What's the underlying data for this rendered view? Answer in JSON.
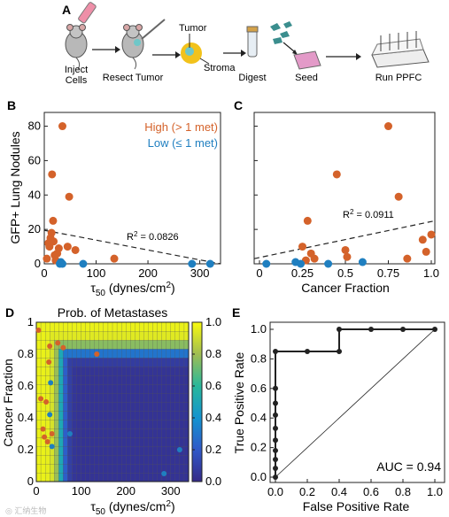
{
  "panel_a": {
    "label": "A",
    "steps": [
      "Inject\nCells",
      "Resect Tumor",
      "Digest",
      "Seed",
      "Run PPFC"
    ],
    "tumor_label": "Tumor",
    "stroma_label": "Stroma"
  },
  "chart_data": [
    {
      "panel": "B",
      "type": "scatter",
      "xlabel": "τ50 (dynes/cm²)",
      "ylabel": "GFP+ Lung Nodules",
      "xlim": [
        0,
        340
      ],
      "ylim": [
        0,
        88
      ],
      "xticks": [
        0,
        100,
        200,
        300
      ],
      "yticks": [
        0,
        20,
        40,
        60,
        80
      ],
      "legend": {
        "placement": "top-right",
        "entries": [
          "High (> 1 met)",
          "Low (≤ 1 met)"
        ]
      },
      "annotation": "R² = 0.0826",
      "fit_line": {
        "x": [
          0,
          340
        ],
        "y": [
          19.5,
          0
        ]
      },
      "series": [
        {
          "name": "High (> 1 met)",
          "color": "#d4622a",
          "x": [
            5,
            8,
            10,
            12,
            14,
            15,
            17,
            18,
            20,
            22,
            25,
            28,
            35,
            45,
            48,
            60,
            135
          ],
          "y": [
            3,
            12,
            10,
            15,
            18,
            52,
            25,
            13,
            5,
            2,
            6,
            9,
            80,
            10,
            39,
            8,
            3
          ]
        },
        {
          "name": "Low (≤ 1 met)",
          "color": "#1f7fc0",
          "x": [
            30,
            32,
            35,
            75,
            285,
            320
          ],
          "y": [
            0,
            1,
            0,
            0,
            0,
            0
          ]
        }
      ]
    },
    {
      "panel": "C",
      "type": "scatter",
      "xlabel": "Cancer Fraction",
      "ylabel": "",
      "xlim": [
        0,
        1
      ],
      "ylim": [
        0,
        88
      ],
      "xticks": [
        0,
        0.25,
        0.5,
        0.75,
        1
      ],
      "xtick_labels": [
        "0",
        "0.25",
        "0.5",
        "0.75",
        "1.0"
      ],
      "annotation": "R² = 0.0911",
      "fit_line": {
        "x": [
          0,
          1
        ],
        "y": [
          3,
          25
        ]
      },
      "series": [
        {
          "name": "High (> 1 met)",
          "color": "#d4622a",
          "x": [
            0.25,
            0.27,
            0.28,
            0.3,
            0.32,
            0.45,
            0.5,
            0.51,
            0.75,
            0.81,
            0.86,
            0.95,
            0.97,
            1.0
          ],
          "y": [
            10,
            2,
            25,
            6,
            3,
            52,
            8,
            4,
            80,
            39,
            3,
            14,
            7,
            17
          ]
        },
        {
          "name": "Low (≤ 1 met)",
          "color": "#1f7fc0",
          "x": [
            0.04,
            0.21,
            0.24,
            0.4,
            0.6
          ],
          "y": [
            0,
            1,
            0,
            0,
            1
          ]
        }
      ]
    },
    {
      "panel": "D",
      "type": "heatmap",
      "title": "Prob. of Metastases",
      "xlabel": "τ50 (dynes/cm²)",
      "ylabel": "Cancer Fraction",
      "xlim": [
        0,
        340
      ],
      "ylim": [
        0,
        1
      ],
      "xticks": [
        0,
        100,
        200,
        300
      ],
      "yticks": [
        0,
        0.2,
        0.4,
        0.6,
        0.8,
        1
      ],
      "ytick_labels": [
        "0",
        "0.2",
        "0.4",
        "0.6",
        "0.8",
        "1"
      ],
      "colorbar": {
        "min": 0,
        "max": 1,
        "ticks": [
          "0.0",
          "0.2",
          "0.4",
          "0.6",
          "0.8",
          "1.0"
        ]
      },
      "points_high": {
        "x": [
          5,
          10,
          15,
          18,
          22,
          25,
          28,
          30,
          35,
          48,
          60,
          135
        ],
        "y": [
          0.95,
          0.52,
          0.33,
          0.28,
          0.5,
          0.25,
          0.75,
          0.85,
          0.3,
          0.87,
          0.84,
          0.8
        ]
      },
      "points_low": {
        "x": [
          30,
          32,
          35,
          75,
          285,
          320
        ],
        "y": [
          0.42,
          0.62,
          0.22,
          0.3,
          0.05,
          0.2
        ]
      }
    },
    {
      "panel": "E",
      "type": "line",
      "xlabel": "False Positive Rate",
      "ylabel": "True Positive Rate",
      "xlim": [
        0,
        1
      ],
      "ylim": [
        0,
        1
      ],
      "xticks": [
        0,
        0.2,
        0.4,
        0.6,
        0.8,
        1
      ],
      "yticks": [
        0,
        0.2,
        0.4,
        0.6,
        0.8,
        1
      ],
      "tick_labels": [
        "0.0",
        "0.2",
        "0.4",
        "0.6",
        "0.8",
        "1.0"
      ],
      "annotation": "AUC = 0.94",
      "roc": {
        "x": [
          0,
          0,
          0,
          0,
          0,
          0,
          0,
          0,
          0,
          0,
          0.2,
          0.4,
          0.4,
          0.6,
          0.8,
          1.0
        ],
        "y": [
          0,
          0.06,
          0.12,
          0.18,
          0.25,
          0.33,
          0.42,
          0.5,
          0.6,
          0.85,
          0.85,
          0.85,
          1.0,
          1.0,
          1.0,
          1.0
        ]
      }
    }
  ]
}
